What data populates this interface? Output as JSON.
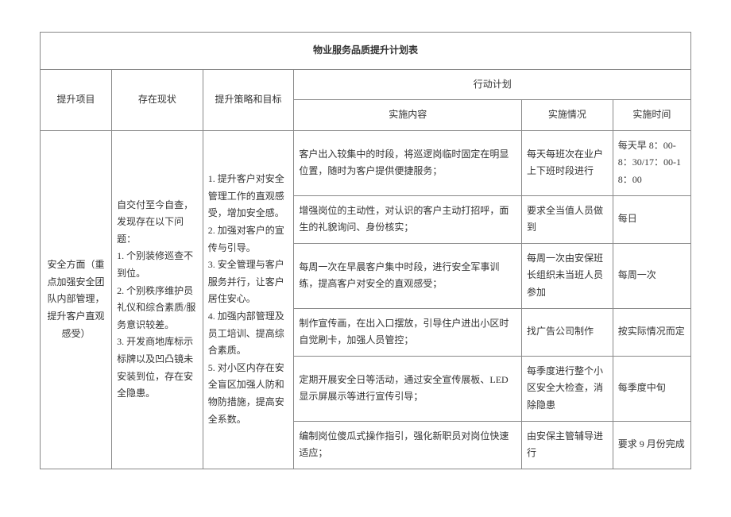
{
  "title": "物业服务品质提升计划表",
  "headers": {
    "item": "提升项目",
    "status": "存在现状",
    "strategy": "提升策略和目标",
    "plan": "行动计划",
    "content": "实施内容",
    "situation": "实施情况",
    "time": "实施时间"
  },
  "item_text": "安全方面（重点加强安全团队内部管理，提升客户直观感受）",
  "status_text": "自交付至今自查，发现存在以下问题：\n1. 个别装修巡查不到位。\n2. 个别秩序维护员礼仪和综合素质/服务意识较差。\n3. 开发商地库标示标牌以及凹凸镜未安装到位，存在安全隐患。",
  "strategy_text": "1. 提升客户对安全管理工作的直观感受，增加安全感。\n2. 加强对客户的宣传与引导。\n3. 安全管理与客户服务并行，让客户居住安心。\n4. 加强内部管理及员工培训、提高综合素质。\n5. 对小区内存在安全盲区加强人防和物防措施，提高安全系数。",
  "rows": [
    {
      "content": "客户出入较集中的时段，将巡逻岗临时固定在明显位置，随时为客户提供便捷服务；",
      "situation": "每天每班次在业户上下班时段进行",
      "time": "每天早 8：00-8：30/17：00-18：00"
    },
    {
      "content": "增强岗位的主动性，对认识的客户主动打招呼，面生的礼貌询问、身份核实；",
      "situation": "要求全当值人员做到",
      "time": "每日"
    },
    {
      "content": "每周一次在早晨客户集中时段，进行安全军事训练，提高客户对安全的直观感受；",
      "situation": "每周一次由安保班长组织未当班人员参加",
      "time": "每周一次"
    },
    {
      "content": "制作宣传画，在出入口摆放，引导住户进出小区时自觉刷卡，加强人员管控；",
      "situation": "找广告公司制作",
      "time": "按实际情况而定"
    },
    {
      "content": "定期开展安全日等活动，通过安全宣传展板、LED 显示屏展示等进行宣传引导；",
      "situation": "每季度进行整个小区安全大检查，消除隐患",
      "time": "每季度中旬"
    },
    {
      "content": "编制岗位傻瓜式操作指引，强化新职员对岗位快速适应；",
      "situation": "由安保主管辅导进行",
      "time": "要求 9 月份完成"
    }
  ]
}
